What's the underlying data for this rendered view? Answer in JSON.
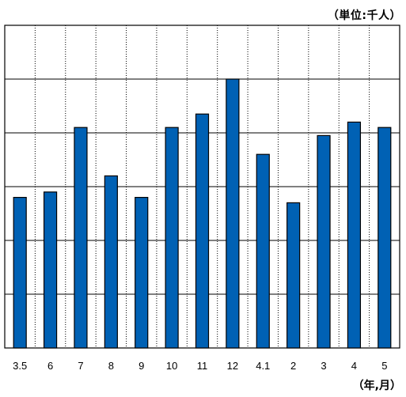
{
  "chart_data": {
    "type": "bar",
    "unit_label": "（単位:千人）",
    "x_unit_label": "（年,月）",
    "categories": [
      "3.5",
      "6",
      "7",
      "8",
      "9",
      "10",
      "11",
      "12",
      "4.1",
      "2",
      "3",
      "4",
      "5"
    ],
    "values": [
      2.8,
      2.9,
      4.1,
      3.2,
      2.8,
      4.1,
      4.35,
      5.0,
      3.6,
      2.7,
      3.95,
      4.2,
      4.1
    ],
    "ylim": [
      0,
      5
    ],
    "y_gridlines": 6,
    "grid": true,
    "bar_color": "#0061b4",
    "bar_edge_color": "#000000"
  }
}
